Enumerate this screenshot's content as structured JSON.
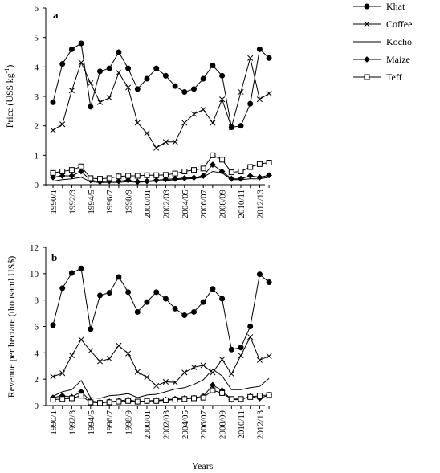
{
  "chart_data": [
    {
      "panel_label": "a",
      "type": "line",
      "ylabel_main": "Price (US$ kg",
      "ylabel_sup": "-1",
      "ylabel_close": ")",
      "ylim": [
        0,
        6
      ],
      "yticks": [
        "0",
        "1",
        "2",
        "3",
        "4",
        "5",
        "6"
      ],
      "x_tick_labels": [
        "1990/1",
        "1992/3",
        "1994/5",
        "1996/7",
        "1998/9",
        "2000/01",
        "2002/03",
        "2004/05",
        "2006/07",
        "2008/09",
        "2010/11",
        "2012/13"
      ],
      "x": [
        "1990/1",
        "1991/2",
        "1992/3",
        "1993/4",
        "1994/5",
        "1995/6",
        "1996/7",
        "1997/8",
        "1998/9",
        "1999/00",
        "2000/01",
        "2001/02",
        "2002/03",
        "2003/04",
        "2004/05",
        "2005/06",
        "2006/07",
        "2007/08",
        "2008/09",
        "2009/10",
        "2010/11",
        "2011/12",
        "2012/13",
        "2013/14"
      ],
      "series": [
        {
          "name": "Khat",
          "marker": "filled-circle",
          "values": [
            2.8,
            4.1,
            4.6,
            4.8,
            2.65,
            3.85,
            3.95,
            4.5,
            3.95,
            3.25,
            3.6,
            3.95,
            3.7,
            3.35,
            3.15,
            3.25,
            3.6,
            4.05,
            3.7,
            1.95,
            2.0,
            2.75,
            4.6,
            4.3
          ]
        },
        {
          "name": "Coffee",
          "marker": "x",
          "values": [
            1.85,
            2.05,
            3.2,
            4.15,
            3.45,
            2.8,
            2.95,
            3.8,
            3.3,
            2.1,
            1.75,
            1.25,
            1.45,
            1.45,
            2.1,
            2.4,
            2.55,
            2.1,
            2.9,
            1.95,
            3.15,
            4.3,
            2.9,
            3.1
          ]
        },
        {
          "name": "Kocho",
          "marker": "none",
          "values": [
            0.12,
            0.17,
            0.2,
            0.25,
            0.1,
            0.07,
            0.08,
            0.08,
            0.1,
            0.08,
            0.1,
            0.12,
            0.14,
            0.17,
            0.19,
            0.21,
            0.25,
            0.45,
            0.4,
            0.17,
            0.17,
            0.2,
            0.2,
            0.25
          ]
        },
        {
          "name": "Maize",
          "marker": "filled-diamond",
          "values": [
            0.25,
            0.3,
            0.3,
            0.45,
            0.15,
            0.1,
            0.12,
            0.12,
            0.15,
            0.1,
            0.12,
            0.15,
            0.18,
            0.2,
            0.22,
            0.24,
            0.3,
            0.68,
            0.45,
            0.2,
            0.2,
            0.3,
            0.25,
            0.32
          ]
        },
        {
          "name": "Teff",
          "marker": "open-square",
          "values": [
            0.4,
            0.45,
            0.5,
            0.62,
            0.22,
            0.2,
            0.22,
            0.28,
            0.3,
            0.3,
            0.32,
            0.32,
            0.33,
            0.38,
            0.45,
            0.5,
            0.55,
            1.0,
            0.85,
            0.42,
            0.45,
            0.6,
            0.7,
            0.75
          ]
        }
      ]
    },
    {
      "panel_label": "b",
      "type": "line",
      "ylabel": "Revenue per hectare (thousand US$)",
      "xlabel": "Years",
      "ylim": [
        0,
        12
      ],
      "yticks": [
        "0",
        "2",
        "4",
        "6",
        "8",
        "10",
        "12"
      ],
      "x_tick_labels": [
        "1990/1",
        "1992/3",
        "1994/5",
        "1996/7",
        "1998/9",
        "2000/01",
        "2002/03",
        "2004/05",
        "2006/07",
        "2008/09",
        "2010/11",
        "2012/13"
      ],
      "x": [
        "1990/1",
        "1991/2",
        "1992/3",
        "1993/4",
        "1994/5",
        "1995/6",
        "1996/7",
        "1997/8",
        "1998/9",
        "1999/00",
        "2000/01",
        "2001/02",
        "2002/03",
        "2003/04",
        "2004/05",
        "2005/06",
        "2006/07",
        "2007/08",
        "2008/09",
        "2009/10",
        "2010/11",
        "2011/12",
        "2012/13",
        "2013/14"
      ],
      "series": [
        {
          "name": "Khat",
          "marker": "filled-circle",
          "values": [
            6.1,
            8.9,
            10.05,
            10.4,
            5.8,
            8.35,
            8.55,
            9.75,
            8.6,
            7.1,
            7.85,
            8.6,
            8.1,
            7.35,
            6.85,
            7.1,
            7.85,
            8.85,
            8.1,
            4.25,
            4.4,
            6.0,
            9.95,
            9.35
          ]
        },
        {
          "name": "Coffee",
          "marker": "x",
          "values": [
            2.2,
            2.45,
            3.8,
            5.0,
            4.15,
            3.35,
            3.55,
            4.55,
            3.95,
            2.55,
            2.15,
            1.5,
            1.8,
            1.75,
            2.5,
            2.9,
            3.05,
            2.5,
            3.5,
            2.4,
            3.8,
            5.2,
            3.45,
            3.75
          ]
        },
        {
          "name": "Kocho",
          "marker": "none",
          "values": [
            0.7,
            1.05,
            1.2,
            1.9,
            0.6,
            0.55,
            0.75,
            0.8,
            0.9,
            0.6,
            0.8,
            0.85,
            1.05,
            1.25,
            1.35,
            1.6,
            1.95,
            2.75,
            2.25,
            1.2,
            1.2,
            1.35,
            1.45,
            2.05
          ]
        },
        {
          "name": "Maize",
          "marker": "filled-diamond",
          "values": [
            0.6,
            0.75,
            0.65,
            1.05,
            0.35,
            0.25,
            0.3,
            0.35,
            0.45,
            0.3,
            0.35,
            0.4,
            0.45,
            0.5,
            0.55,
            0.6,
            0.7,
            1.55,
            1.15,
            0.45,
            0.45,
            0.7,
            0.55,
            0.8
          ]
        },
        {
          "name": "Teff",
          "marker": "open-square",
          "values": [
            0.45,
            0.5,
            0.55,
            0.75,
            0.25,
            0.2,
            0.25,
            0.3,
            0.35,
            0.3,
            0.35,
            0.35,
            0.4,
            0.45,
            0.5,
            0.55,
            0.6,
            1.15,
            0.95,
            0.5,
            0.5,
            0.65,
            0.75,
            0.8
          ]
        }
      ]
    }
  ],
  "legend": [
    {
      "name": "Khat",
      "marker": "filled-circle"
    },
    {
      "name": "Coffee",
      "marker": "x"
    },
    {
      "name": "Kocho",
      "marker": "none"
    },
    {
      "name": "Maize",
      "marker": "filled-diamond"
    },
    {
      "name": "Teff",
      "marker": "open-square"
    }
  ]
}
